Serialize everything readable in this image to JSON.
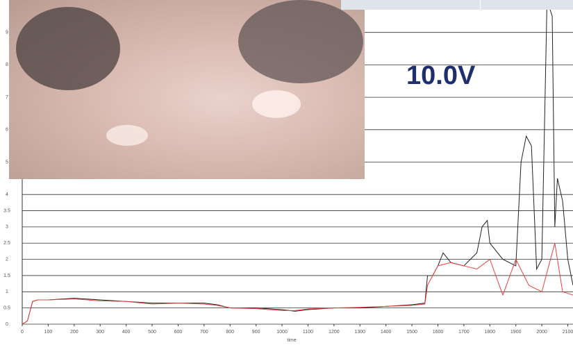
{
  "chart_data": {
    "type": "line",
    "annotation": "10.0V",
    "x_label": "time",
    "xlim": [
      0,
      2120
    ],
    "ylim": [
      0,
      10
    ],
    "xticks": [
      0,
      100,
      200,
      300,
      400,
      500,
      600,
      700,
      800,
      900,
      1000,
      1100,
      1200,
      1300,
      1400,
      1500,
      1600,
      1700,
      1800,
      1900,
      2000,
      2100
    ],
    "yticks": [
      0,
      0.5,
      1,
      1.5,
      2,
      2.5,
      3,
      3.5,
      4,
      5,
      6,
      7,
      8,
      9
    ],
    "grid": true,
    "series": [
      {
        "color": "#222222",
        "x": [
          0,
          20,
          40,
          60,
          100,
          200,
          300,
          400,
          500,
          600,
          700,
          750,
          800,
          900,
          1000,
          1050,
          1100,
          1200,
          1300,
          1400,
          1500,
          1550,
          1560,
          1580,
          1600,
          1620,
          1650,
          1700,
          1750,
          1770,
          1790,
          1800,
          1850,
          1900,
          1920,
          1940,
          1960,
          1980,
          2000,
          2020,
          2040,
          2050,
          2060,
          2080,
          2100,
          2120
        ],
        "values": [
          0,
          0.1,
          0.7,
          0.75,
          0.75,
          0.8,
          0.75,
          0.7,
          0.65,
          0.65,
          0.65,
          0.6,
          0.5,
          0.5,
          0.45,
          0.4,
          0.45,
          0.5,
          0.5,
          0.55,
          0.6,
          0.65,
          1.5,
          1.5,
          1.8,
          2.2,
          1.9,
          1.8,
          2.2,
          3.0,
          3.2,
          2.5,
          2.0,
          1.8,
          5.0,
          5.8,
          5.5,
          1.7,
          2.0,
          10,
          9.5,
          3.0,
          4.5,
          3.8,
          2.0,
          1.2
        ]
      },
      {
        "color": "#e8413c",
        "x": [
          0,
          20,
          40,
          60,
          100,
          200,
          300,
          400,
          500,
          600,
          700,
          750,
          800,
          900,
          1000,
          1050,
          1100,
          1200,
          1300,
          1400,
          1500,
          1550,
          1560,
          1600,
          1650,
          1700,
          1750,
          1800,
          1850,
          1900,
          1950,
          2000,
          2050,
          2080,
          2120
        ],
        "values": [
          0,
          0.1,
          0.7,
          0.75,
          0.75,
          0.78,
          0.72,
          0.7,
          0.62,
          0.65,
          0.62,
          0.58,
          0.5,
          0.48,
          0.42,
          0.42,
          0.47,
          0.5,
          0.52,
          0.55,
          0.58,
          0.62,
          1.2,
          1.8,
          1.9,
          1.8,
          1.7,
          2.0,
          0.9,
          2.0,
          1.2,
          1.0,
          2.5,
          1.0,
          0.9
        ]
      }
    ]
  }
}
